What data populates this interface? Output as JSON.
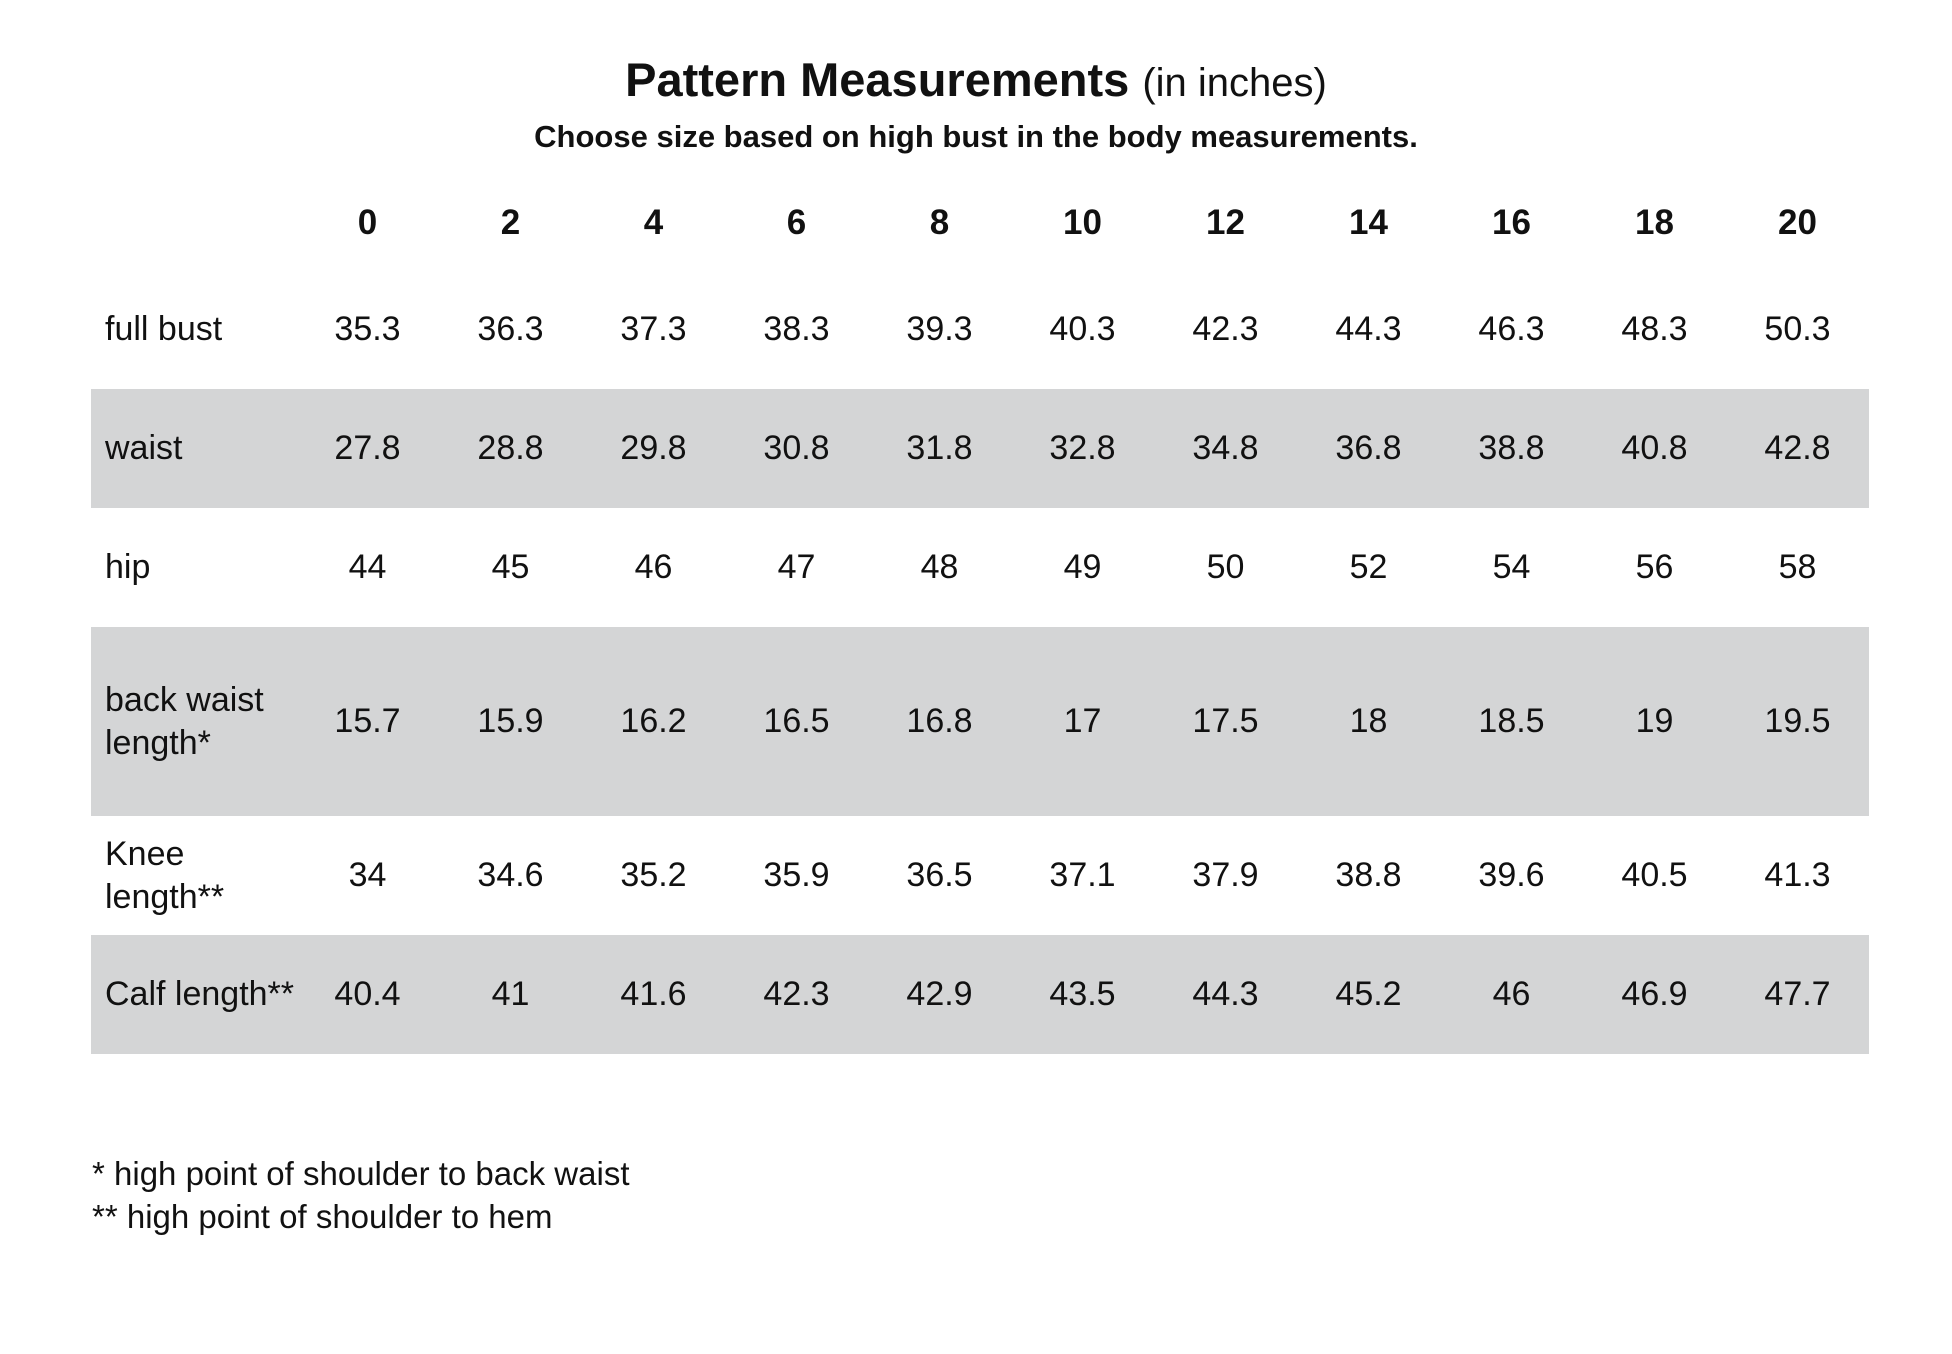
{
  "header": {
    "title": "Pattern Measurements",
    "title_unit": "(in inches)",
    "subtitle": "Choose size based on high bust in the body measurements."
  },
  "table": {
    "sizes": [
      "0",
      "2",
      "4",
      "6",
      "8",
      "10",
      "12",
      "14",
      "16",
      "18",
      "20"
    ],
    "rows": [
      {
        "label": "full bust",
        "values": [
          "35.3",
          "36.3",
          "37.3",
          "38.3",
          "39.3",
          "40.3",
          "42.3",
          "44.3",
          "46.3",
          "48.3",
          "50.3"
        ]
      },
      {
        "label": "waist",
        "values": [
          "27.8",
          "28.8",
          "29.8",
          "30.8",
          "31.8",
          "32.8",
          "34.8",
          "36.8",
          "38.8",
          "40.8",
          "42.8"
        ]
      },
      {
        "label": "hip",
        "values": [
          "44",
          "45",
          "46",
          "47",
          "48",
          "49",
          "50",
          "52",
          "54",
          "56",
          "58"
        ]
      },
      {
        "label": "back waist length*",
        "values": [
          "15.7",
          "15.9",
          "16.2",
          "16.5",
          "16.8",
          "17",
          "17.5",
          "18",
          "18.5",
          "19",
          "19.5"
        ]
      },
      {
        "label": "Knee length**",
        "values": [
          "34",
          "34.6",
          "35.2",
          "35.9",
          "36.5",
          "37.1",
          "37.9",
          "38.8",
          "39.6",
          "40.5",
          "41.3"
        ]
      },
      {
        "label": "Calf length**",
        "values": [
          "40.4",
          "41",
          "41.6",
          "42.3",
          "42.9",
          "43.5",
          "44.3",
          "45.2",
          "46",
          "46.9",
          "47.7"
        ]
      }
    ],
    "row_shade_color": "#d4d5d6"
  },
  "footnotes": [
    "* high point of shoulder to back waist",
    "** high point of shoulder to hem"
  ]
}
